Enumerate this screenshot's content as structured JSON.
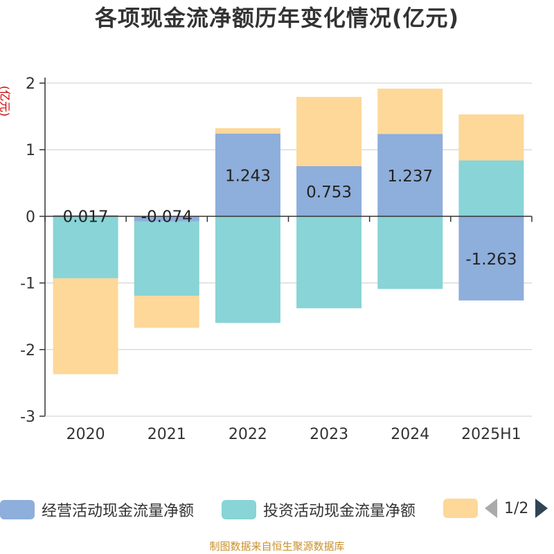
{
  "title": "各项现金流净额历年变化情况(亿元)",
  "unit_label": "(亿元)",
  "source": "制图数据来自恒生聚源数据库",
  "colors": {
    "operating": "#8eaedb",
    "investing": "#88d4d6",
    "financing": "#fdd899",
    "axis": "#333333",
    "grid": "#cccccc",
    "unit_text": "#cc0000",
    "source_text": "#c8902a"
  },
  "legend": {
    "items": [
      {
        "label": "经营活动现金流量净额",
        "color": "#8eaedb"
      },
      {
        "label": "投资活动现金流量净额",
        "color": "#88d4d6"
      },
      {
        "label": "",
        "color": "#fdd899"
      }
    ],
    "page": "1/2",
    "prev_icon": "triangle-left-icon",
    "next_icon": "triangle-right-icon"
  },
  "chart_data": {
    "type": "bar",
    "stacked": true,
    "title": "各项现金流净额历年变化情况(亿元)",
    "ylabel": "(亿元)",
    "ylim": [
      -3,
      2
    ],
    "yticks": [
      -3,
      -2,
      -1,
      0,
      1,
      2
    ],
    "categories": [
      "2020",
      "2021",
      "2022",
      "2023",
      "2024",
      "2025H1"
    ],
    "series": [
      {
        "name": "经营活动现金流量净额",
        "values": [
          0.017,
          -0.074,
          1.243,
          0.753,
          1.237,
          -1.263
        ],
        "labels": [
          "0.017",
          "-0.074",
          "1.243",
          "0.753",
          "1.237",
          "-1.263"
        ]
      },
      {
        "name": "投资活动现金流量净额",
        "values": [
          -0.93,
          -1.12,
          -1.6,
          -1.38,
          -1.09,
          0.84
        ]
      },
      {
        "name": "",
        "values": [
          -1.44,
          -0.48,
          0.08,
          1.04,
          0.68,
          0.69
        ]
      }
    ]
  }
}
